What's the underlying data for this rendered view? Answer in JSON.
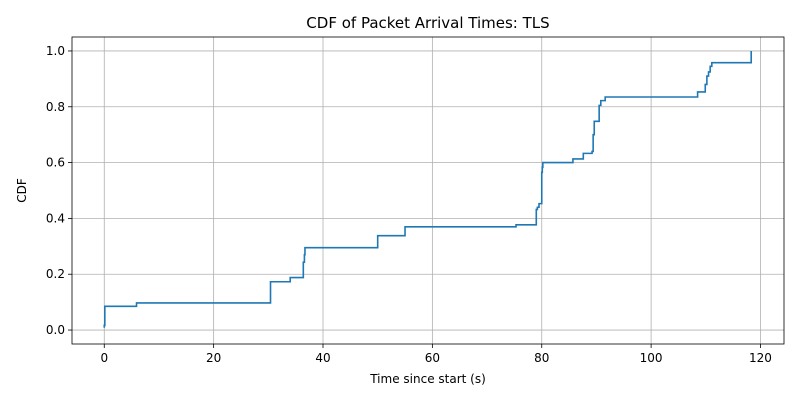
{
  "chart_data": {
    "type": "line",
    "step": "post",
    "title": "CDF of Packet Arrival Times: TLS",
    "xlabel": "Time since start (s)",
    "ylabel": "CDF",
    "xlim": [
      -5.9,
      124.3
    ],
    "ylim": [
      -0.05,
      1.05
    ],
    "xticks": [
      0,
      20,
      40,
      60,
      80,
      100,
      120
    ],
    "yticks": [
      0.0,
      0.2,
      0.4,
      0.6,
      0.8,
      1.0
    ],
    "ytick_labels": [
      "0.0",
      "0.2",
      "0.4",
      "0.6",
      "0.8",
      "1.0"
    ],
    "grid": true,
    "series": [
      {
        "color": "#1f77b4",
        "x": [
          0.0,
          0.0,
          0.1,
          5.9,
          30.4,
          34.0,
          36.4,
          36.6,
          36.7,
          50.0,
          55.0,
          75.3,
          79.0,
          79.2,
          79.5,
          80.0,
          80.1,
          80.2,
          85.7,
          87.6,
          89.2,
          89.4,
          89.6,
          90.5,
          90.8,
          91.6,
          108.5,
          109.9,
          110.2,
          110.5,
          110.8,
          111.1,
          118.3,
          118.3
        ],
        "y": [
          0.008,
          0.017,
          0.085,
          0.097,
          0.173,
          0.188,
          0.243,
          0.27,
          0.295,
          0.338,
          0.37,
          0.377,
          0.432,
          0.44,
          0.453,
          0.565,
          0.583,
          0.6,
          0.613,
          0.633,
          0.64,
          0.7,
          0.748,
          0.805,
          0.822,
          0.835,
          0.853,
          0.88,
          0.91,
          0.925,
          0.945,
          0.958,
          0.98,
          1.0
        ]
      }
    ]
  }
}
